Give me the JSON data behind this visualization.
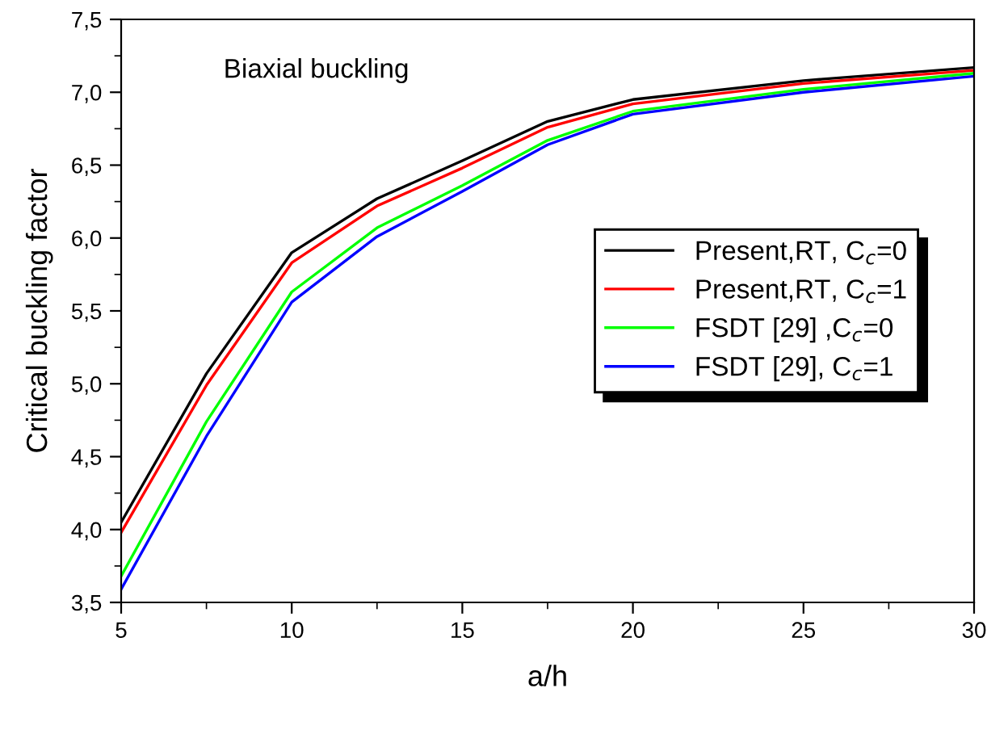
{
  "chart_data": {
    "type": "line",
    "annotations": [
      "Biaxial buckling"
    ],
    "xlabel": "a/h",
    "ylabel": "Critical buckling factor",
    "x": [
      5,
      7.5,
      10,
      12.5,
      15,
      17.5,
      20,
      25,
      30
    ],
    "series": [
      {
        "name": "Present,RT, C$_{c}$=0",
        "color": "#000000",
        "values": [
          4.05,
          5.07,
          5.9,
          6.27,
          6.53,
          6.8,
          6.95,
          7.08,
          7.17
        ]
      },
      {
        "name": "Present,RT, C$_{c}$=1",
        "color": "#ff0000",
        "values": [
          3.98,
          4.99,
          5.83,
          6.22,
          6.48,
          6.76,
          6.92,
          7.06,
          7.15
        ]
      },
      {
        "name": "FSDT [29] ,C$_{c}$=0",
        "color": "#00ff00",
        "values": [
          3.68,
          4.74,
          5.63,
          6.07,
          6.36,
          6.67,
          6.87,
          7.02,
          7.13
        ]
      },
      {
        "name": "FSDT [29], C$_{c}$=1",
        "color": "#0000ff",
        "values": [
          3.59,
          4.64,
          5.56,
          6.01,
          6.32,
          6.64,
          6.85,
          7.0,
          7.11
        ]
      }
    ],
    "xlim": [
      5,
      30
    ],
    "xticks": [
      5,
      10,
      15,
      20,
      25,
      30
    ],
    "ylim": [
      3.5,
      7.5
    ],
    "yticks": [
      {
        "value": 3.5,
        "label": "3,5"
      },
      {
        "value": 4.0,
        "label": "4,0"
      },
      {
        "value": 4.5,
        "label": "4,5"
      },
      {
        "value": 5.0,
        "label": "5,0"
      },
      {
        "value": 5.5,
        "label": "5,5"
      },
      {
        "value": 6.0,
        "label": "6,0"
      },
      {
        "value": 6.5,
        "label": "6,5"
      },
      {
        "value": 7.0,
        "label": "7,0"
      },
      {
        "value": 7.5,
        "label": "7,5"
      }
    ],
    "legend": "right",
    "grid": false,
    "marker": "none",
    "line_style": "solid"
  }
}
